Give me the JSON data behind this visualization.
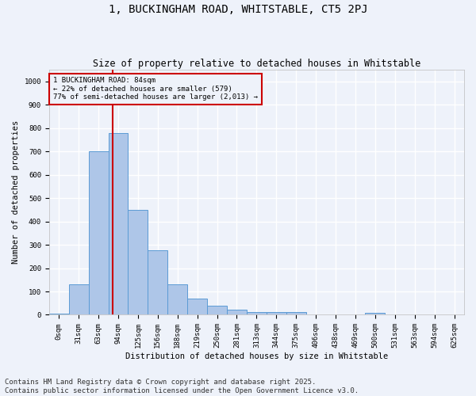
{
  "title": "1, BUCKINGHAM ROAD, WHITSTABLE, CT5 2PJ",
  "subtitle": "Size of property relative to detached houses in Whitstable",
  "xlabel": "Distribution of detached houses by size in Whitstable",
  "ylabel": "Number of detached properties",
  "categories": [
    "0sqm",
    "31sqm",
    "63sqm",
    "94sqm",
    "125sqm",
    "156sqm",
    "188sqm",
    "219sqm",
    "250sqm",
    "281sqm",
    "313sqm",
    "344sqm",
    "375sqm",
    "406sqm",
    "438sqm",
    "469sqm",
    "500sqm",
    "531sqm",
    "563sqm",
    "594sqm",
    "625sqm"
  ],
  "values": [
    5,
    130,
    700,
    780,
    450,
    278,
    132,
    70,
    40,
    22,
    12,
    12,
    12,
    0,
    0,
    0,
    8,
    0,
    0,
    0,
    0
  ],
  "bar_color": "#aec6e8",
  "bar_edge_color": "#5b9bd5",
  "vline_color": "#cc0000",
  "vline_pos": 2.7,
  "annotation_text": "1 BUCKINGHAM ROAD: 84sqm\n← 22% of detached houses are smaller (579)\n77% of semi-detached houses are larger (2,013) →",
  "annotation_box_color": "#cc0000",
  "ylim": [
    0,
    1050
  ],
  "yticks": [
    0,
    100,
    200,
    300,
    400,
    500,
    600,
    700,
    800,
    900,
    1000
  ],
  "footnote": "Contains HM Land Registry data © Crown copyright and database right 2025.\nContains public sector information licensed under the Open Government Licence v3.0.",
  "background_color": "#eef2fa",
  "grid_color": "#ffffff",
  "title_fontsize": 10,
  "subtitle_fontsize": 8.5,
  "axis_label_fontsize": 7.5,
  "tick_fontsize": 6.5,
  "footnote_fontsize": 6.5
}
